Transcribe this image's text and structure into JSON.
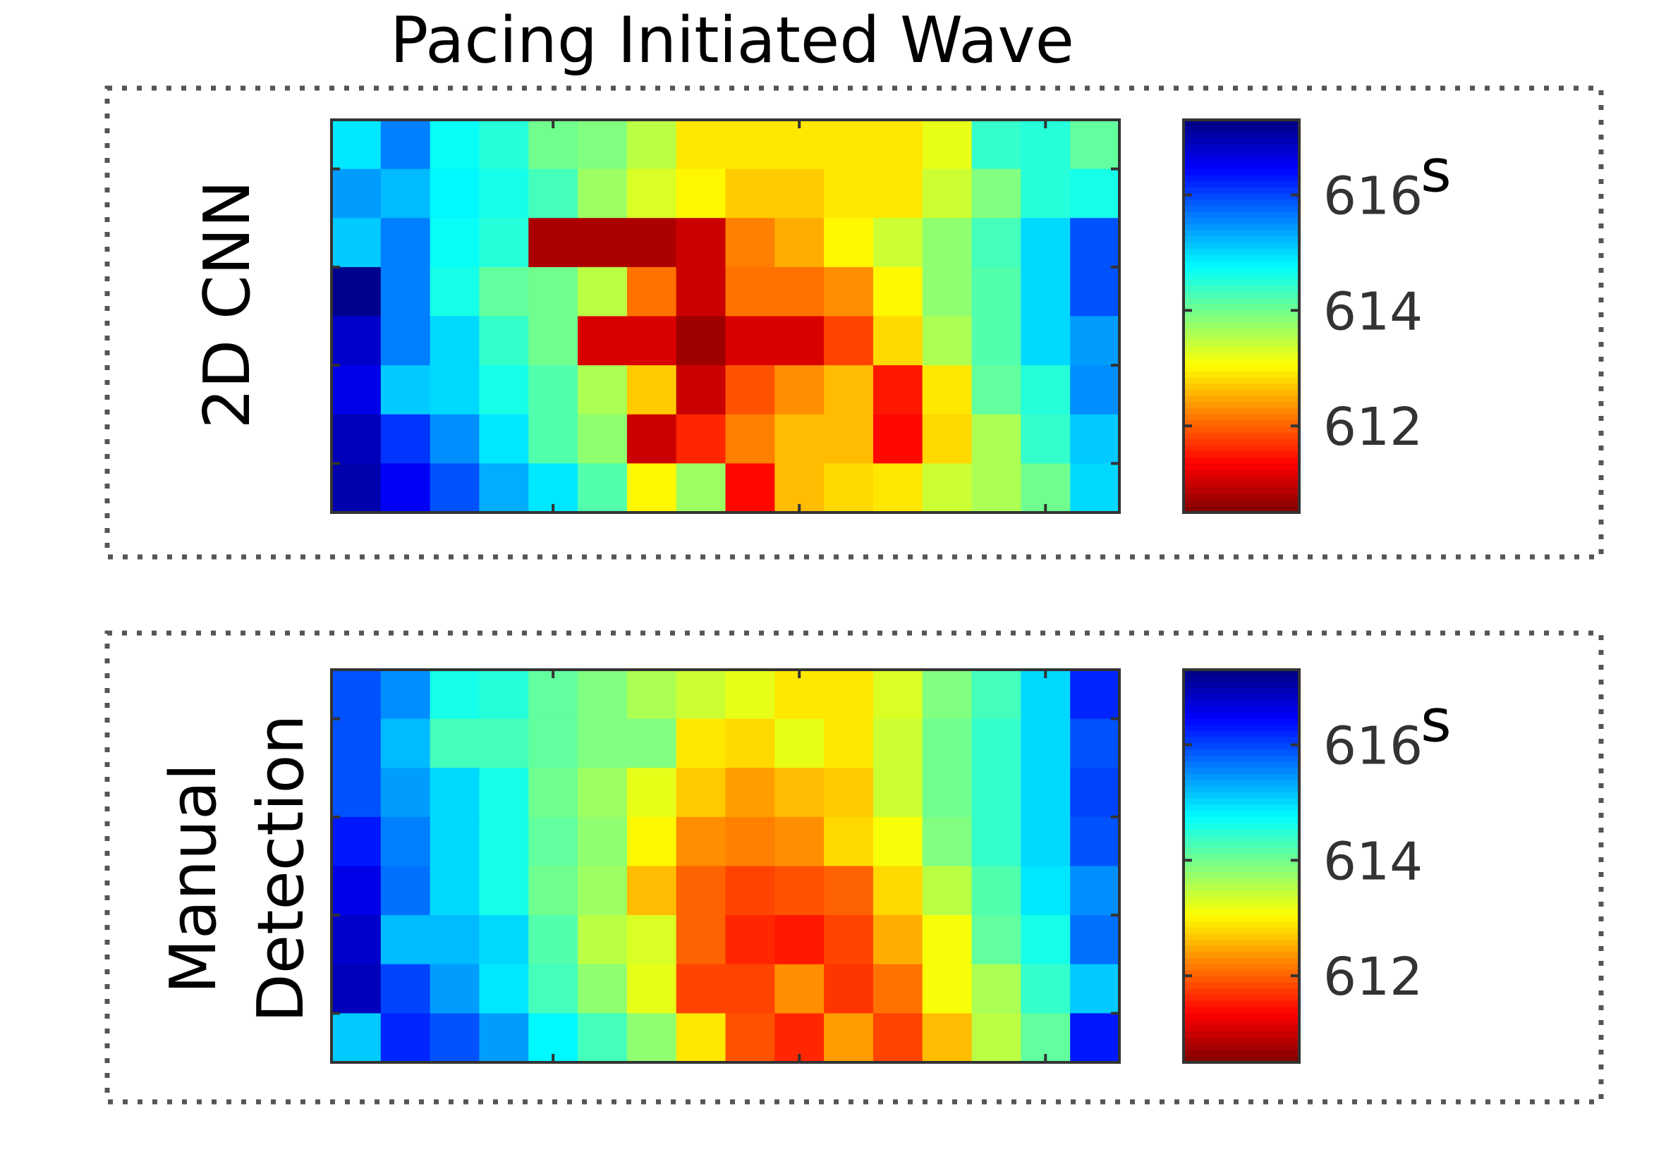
{
  "chart_data": [
    {
      "type": "heatmap",
      "title": "Pacing Initiated Wave",
      "row_label": "2D CNN",
      "rows": 8,
      "cols": 16,
      "colormap": "jet",
      "clim": [
        610.5,
        617.3
      ],
      "colorbar_ticks": [
        616,
        614,
        612
      ],
      "colorbar_unit": "s",
      "values": [
        [
          614.9,
          615.6,
          614.7,
          614.5,
          614.0,
          613.9,
          613.5,
          612.9,
          612.9,
          612.9,
          612.9,
          612.9,
          613.2,
          614.4,
          614.5,
          614.1
        ],
        [
          615.4,
          615.2,
          614.8,
          614.6,
          614.3,
          613.7,
          613.3,
          613.0,
          612.7,
          612.7,
          612.9,
          612.9,
          613.4,
          613.9,
          614.5,
          614.6
        ],
        [
          615.1,
          615.6,
          614.7,
          614.5,
          610.8,
          610.8,
          610.8,
          611.0,
          612.2,
          612.5,
          613.0,
          613.4,
          613.8,
          614.3,
          615.0,
          615.9
        ],
        [
          617.2,
          615.6,
          614.6,
          614.1,
          614.0,
          613.5,
          612.1,
          611.0,
          612.1,
          612.1,
          612.3,
          613.0,
          613.8,
          614.2,
          615.0,
          615.9
        ],
        [
          616.8,
          615.6,
          615.0,
          614.4,
          614.0,
          611.1,
          611.1,
          610.7,
          611.1,
          611.1,
          611.8,
          612.8,
          613.6,
          614.2,
          615.0,
          615.4
        ],
        [
          616.6,
          615.1,
          615.0,
          614.6,
          614.2,
          613.6,
          612.7,
          611.0,
          611.9,
          612.3,
          612.6,
          611.5,
          612.9,
          614.1,
          614.5,
          615.5
        ],
        [
          616.9,
          616.1,
          615.5,
          614.9,
          614.2,
          613.8,
          611.0,
          611.6,
          612.2,
          612.6,
          612.6,
          611.4,
          612.8,
          613.6,
          614.4,
          615.1
        ],
        [
          617.0,
          616.5,
          615.9,
          615.3,
          614.9,
          614.2,
          613.0,
          613.7,
          611.4,
          612.6,
          612.8,
          612.9,
          613.4,
          613.6,
          614.0,
          615.0
        ]
      ]
    },
    {
      "type": "heatmap",
      "row_label": "Manual Detection",
      "rows": 8,
      "cols": 16,
      "colormap": "jet",
      "clim": [
        610.5,
        617.3
      ],
      "colorbar_ticks": [
        616,
        614,
        612
      ],
      "colorbar_unit": "s",
      "values": [
        [
          615.9,
          615.5,
          614.6,
          614.5,
          614.1,
          613.9,
          613.6,
          613.4,
          613.2,
          612.9,
          612.9,
          613.3,
          613.9,
          614.3,
          615.0,
          616.2
        ],
        [
          615.9,
          615.2,
          614.3,
          614.3,
          614.1,
          613.9,
          613.9,
          612.9,
          612.8,
          613.2,
          612.9,
          613.4,
          614.0,
          614.4,
          615.0,
          615.9
        ],
        [
          615.9,
          615.4,
          615.0,
          614.6,
          614.0,
          613.7,
          613.2,
          612.7,
          612.4,
          612.6,
          612.7,
          613.4,
          614.0,
          614.4,
          615.0,
          616.0
        ],
        [
          616.3,
          615.6,
          615.0,
          614.6,
          614.1,
          613.8,
          613.0,
          612.3,
          612.2,
          612.3,
          612.8,
          613.1,
          613.9,
          614.4,
          615.0,
          615.9
        ],
        [
          616.6,
          615.7,
          615.0,
          614.6,
          614.0,
          613.7,
          612.6,
          612.0,
          611.8,
          611.9,
          612.0,
          612.8,
          613.5,
          614.2,
          614.9,
          615.5
        ],
        [
          616.8,
          615.2,
          615.2,
          615.0,
          614.2,
          613.5,
          613.3,
          612.0,
          611.6,
          611.5,
          611.8,
          612.5,
          613.1,
          614.1,
          614.6,
          615.7
        ],
        [
          616.9,
          616.0,
          615.4,
          614.9,
          614.3,
          613.8,
          613.2,
          611.8,
          611.8,
          612.3,
          611.7,
          612.1,
          613.1,
          613.6,
          614.4,
          615.1
        ],
        [
          615.1,
          616.2,
          615.9,
          615.4,
          614.8,
          614.3,
          613.8,
          612.9,
          611.9,
          611.6,
          612.4,
          611.8,
          612.6,
          613.5,
          614.1,
          616.3
        ]
      ]
    }
  ]
}
